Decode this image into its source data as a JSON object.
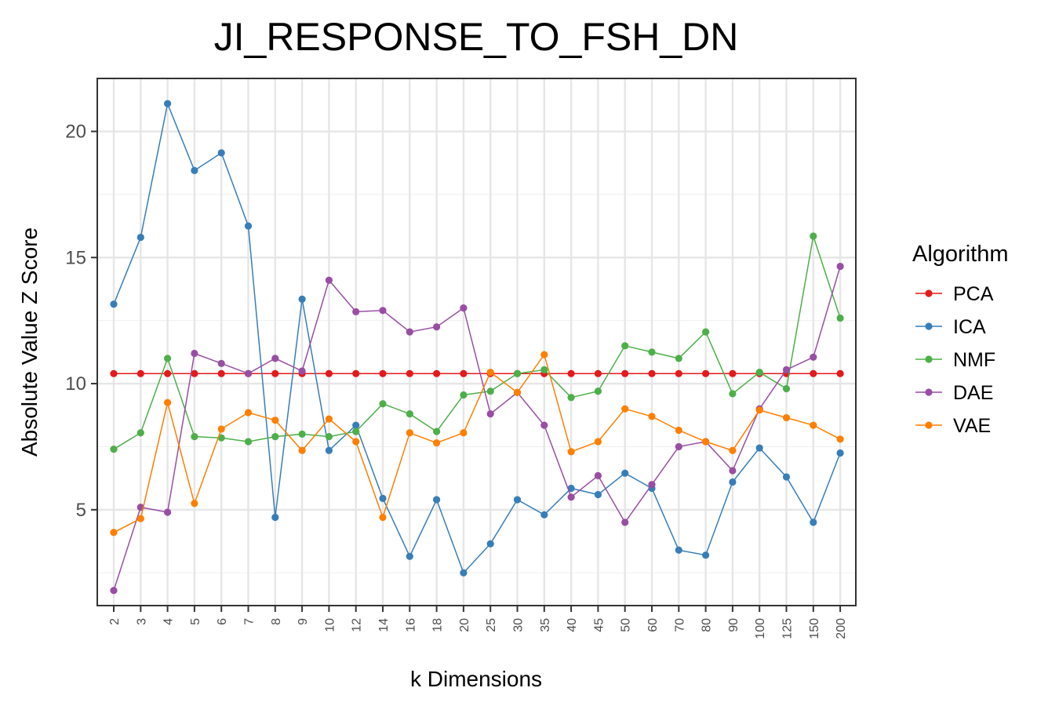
{
  "chart_data": {
    "type": "line",
    "title": "JI_RESPONSE_TO_FSH_DN",
    "xlabel": "k Dimensions",
    "ylabel": "Absolute Value Z Score",
    "categories": [
      "2",
      "3",
      "4",
      "5",
      "6",
      "7",
      "8",
      "9",
      "10",
      "12",
      "14",
      "16",
      "18",
      "20",
      "25",
      "30",
      "35",
      "40",
      "45",
      "50",
      "60",
      "70",
      "80",
      "90",
      "100",
      "125",
      "150",
      "200"
    ],
    "ylim": [
      1.2,
      22.1
    ],
    "yticks": [
      5,
      10,
      15,
      20
    ],
    "grid": true,
    "legend": {
      "title": "Algorithm",
      "position": "right"
    },
    "series": [
      {
        "name": "PCA",
        "color": "#e41a1c",
        "values": [
          10.4,
          10.4,
          10.4,
          10.4,
          10.4,
          10.4,
          10.4,
          10.4,
          10.4,
          10.4,
          10.4,
          10.4,
          10.4,
          10.4,
          10.4,
          10.4,
          10.4,
          10.4,
          10.4,
          10.4,
          10.4,
          10.4,
          10.4,
          10.4,
          10.4,
          10.4,
          10.4,
          10.4
        ]
      },
      {
        "name": "ICA",
        "color": "#377eb8",
        "values": [
          13.15,
          15.8,
          21.1,
          18.45,
          19.15,
          16.25,
          4.7,
          13.35,
          7.35,
          8.35,
          5.45,
          3.15,
          5.4,
          2.5,
          3.65,
          5.4,
          4.8,
          5.85,
          5.6,
          6.45,
          5.85,
          3.4,
          3.2,
          6.1,
          7.45,
          6.3,
          4.5,
          7.25
        ]
      },
      {
        "name": "NMF",
        "color": "#4daf4a",
        "values": [
          7.4,
          8.05,
          11.0,
          7.9,
          7.85,
          7.7,
          7.9,
          8.0,
          7.9,
          8.1,
          9.2,
          8.8,
          8.1,
          9.55,
          9.7,
          10.4,
          10.55,
          9.45,
          9.7,
          11.5,
          11.25,
          11.0,
          12.05,
          9.6,
          10.45,
          9.8,
          15.85,
          12.6
        ]
      },
      {
        "name": "DAE",
        "color": "#984ea3",
        "values": [
          1.8,
          5.1,
          4.9,
          11.2,
          10.8,
          10.4,
          11.0,
          10.5,
          14.1,
          12.85,
          12.9,
          12.05,
          12.25,
          13.0,
          8.8,
          9.65,
          8.35,
          5.5,
          6.35,
          4.5,
          6.0,
          7.5,
          7.7,
          6.55,
          9.0,
          10.55,
          11.05,
          14.65
        ]
      },
      {
        "name": "VAE",
        "color": "#ff7f00",
        "values": [
          4.1,
          4.65,
          9.25,
          5.25,
          8.2,
          8.85,
          8.55,
          7.35,
          8.6,
          7.7,
          4.7,
          8.05,
          7.65,
          8.05,
          10.45,
          9.65,
          11.15,
          7.3,
          7.7,
          9.0,
          8.7,
          8.15,
          7.7,
          7.35,
          8.95,
          8.65,
          8.35,
          7.8
        ]
      }
    ]
  }
}
